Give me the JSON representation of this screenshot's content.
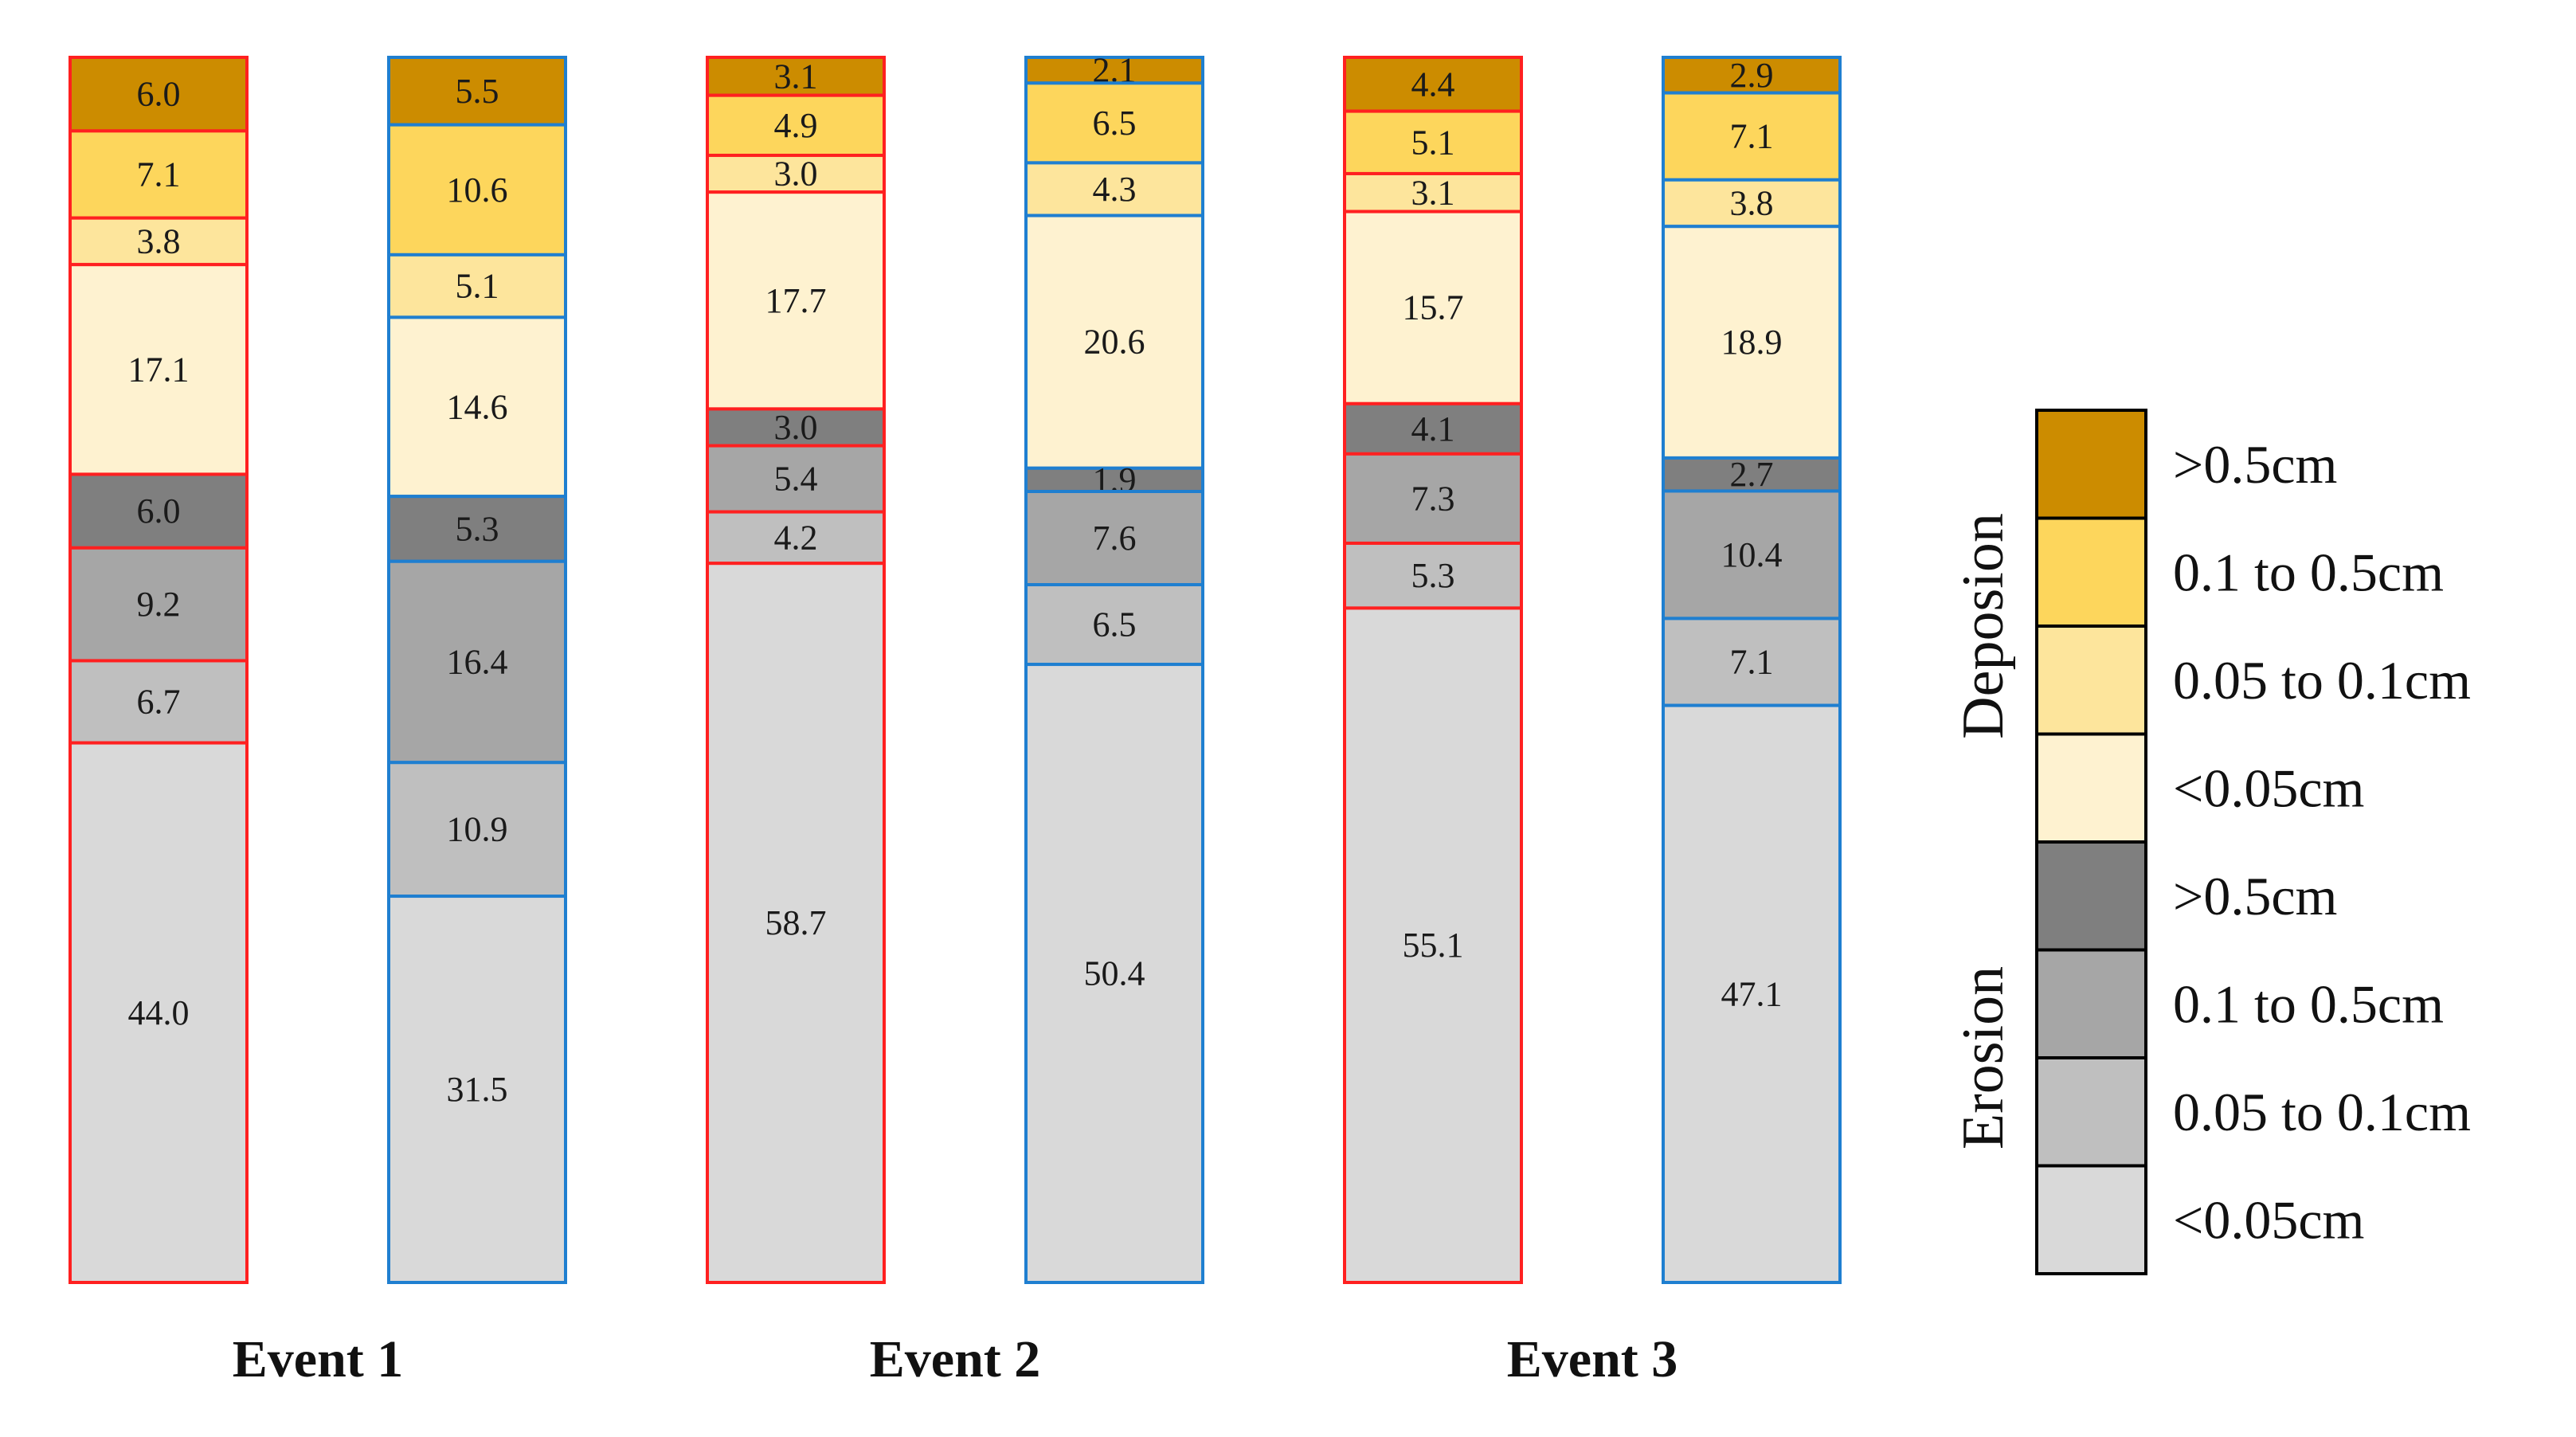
{
  "chart_data": {
    "type": "bar",
    "stacked": true,
    "orientation": "vertical",
    "unit": "%",
    "categories": [
      "Event 1",
      "Event 2",
      "Event 3"
    ],
    "bar_outline_colors": [
      "#ff2020",
      "#1f7fd0"
    ],
    "bars": [
      {
        "event": "Event 1",
        "outline": "#ff2020",
        "deposition": [
          6.0,
          7.1,
          3.8,
          17.1
        ],
        "erosion": [
          6.0,
          9.2,
          6.7,
          44.0
        ]
      },
      {
        "event": "Event 1",
        "outline": "#1f7fd0",
        "deposition": [
          5.5,
          10.6,
          5.1,
          14.6
        ],
        "erosion": [
          5.3,
          16.4,
          10.9,
          31.5
        ]
      },
      {
        "event": "Event 2",
        "outline": "#ff2020",
        "deposition": [
          3.1,
          4.9,
          3.0,
          17.7
        ],
        "erosion": [
          3.0,
          5.4,
          4.2,
          58.7
        ]
      },
      {
        "event": "Event 2",
        "outline": "#1f7fd0",
        "deposition": [
          2.1,
          6.5,
          4.3,
          20.6
        ],
        "erosion": [
          1.9,
          7.6,
          6.5,
          50.4
        ]
      },
      {
        "event": "Event 3",
        "outline": "#ff2020",
        "deposition": [
          4.4,
          5.1,
          3.1,
          15.7
        ],
        "erosion": [
          4.1,
          7.3,
          5.3,
          55.1
        ]
      },
      {
        "event": "Event 3",
        "outline": "#1f7fd0",
        "deposition": [
          2.9,
          7.1,
          3.8,
          18.9
        ],
        "erosion": [
          2.7,
          10.4,
          7.1,
          47.1
        ]
      }
    ],
    "stack_order_top_to_bottom": [
      "deposition >0.5cm",
      "deposition 0.1 to 0.5cm",
      "deposition 0.05 to 0.1cm",
      "deposition <0.05cm",
      "erosion >0.5cm",
      "erosion 0.1 to 0.5cm",
      "erosion 0.05 to 0.1cm",
      "erosion <0.05cm"
    ],
    "legend": {
      "placement": "right",
      "groups": [
        {
          "name": "Deposion",
          "items": [
            {
              "label": ">0.5cm",
              "color": "#cc8c00"
            },
            {
              "label": "0.1 to 0.5cm",
              "color": "#fdd65c"
            },
            {
              "label": "0.05 to 0.1cm",
              "color": "#fde59c"
            },
            {
              "label": "<0.05cm",
              "color": "#fef2d0"
            }
          ]
        },
        {
          "name": "Erosion",
          "items": [
            {
              "label": ">0.5cm",
              "color": "#7f7f7f"
            },
            {
              "label": "0.1 to 0.5cm",
              "color": "#a6a6a6"
            },
            {
              "label": "0.05 to 0.1cm",
              "color": "#bfbfbf"
            },
            {
              "label": "<0.05cm",
              "color": "#d9d9d9"
            }
          ]
        }
      ]
    },
    "grid": false
  }
}
